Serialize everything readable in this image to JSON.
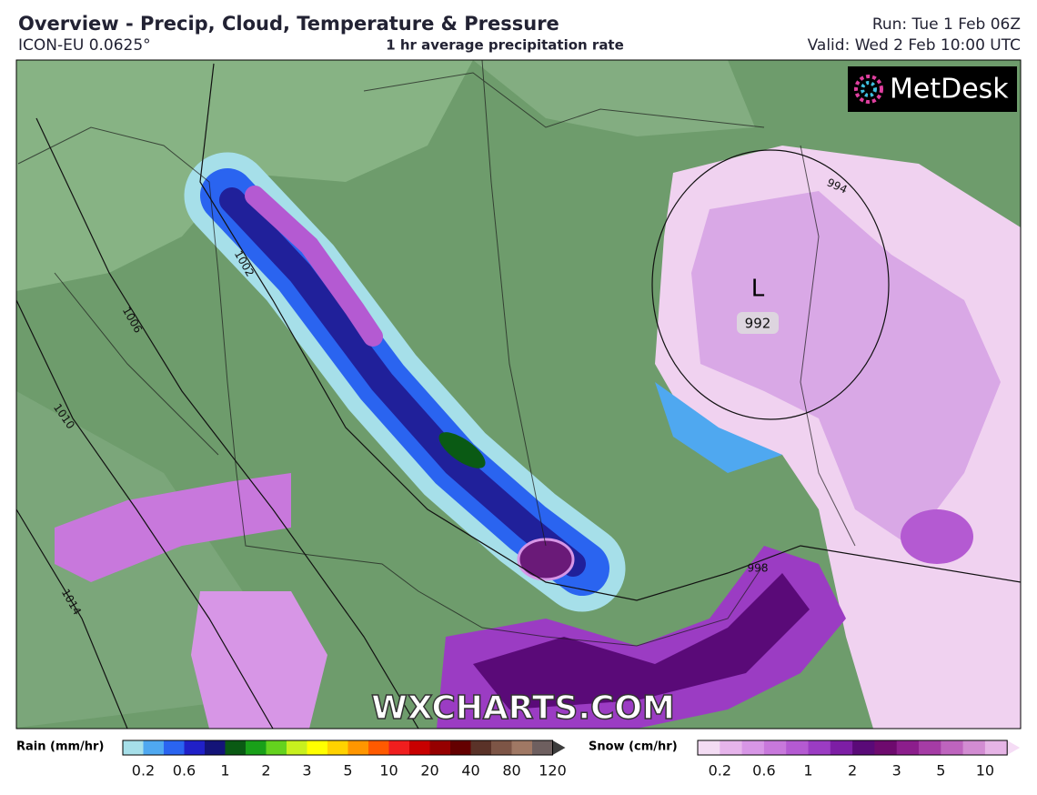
{
  "header": {
    "title": "Overview - Precip, Cloud, Temperature & Pressure",
    "model": "ICON-EU 0.0625°",
    "product": "1 hr average precipitation rate",
    "run": "Run: Tue 1 Feb 06Z",
    "valid": "Valid: Wed 2 Feb 10:00 UTC"
  },
  "map": {
    "logo": "MetDesk",
    "watermark": "WXCHARTS.COM",
    "low": {
      "symbol": "L",
      "pressure": "992"
    },
    "isobars": [
      "1002",
      "1006",
      "1010",
      "1014",
      "994",
      "998"
    ]
  },
  "legend": {
    "rain": {
      "label": "Rain (mm/hr)",
      "ticks": [
        0.2,
        0.6,
        1,
        2,
        3,
        5,
        10,
        20,
        40,
        80,
        120
      ],
      "colors": [
        "#a6dfe9",
        "#4fa8f0",
        "#2a64f0",
        "#2020c8",
        "#141478",
        "#0a5a14",
        "#19a019",
        "#64d21e",
        "#c8f01e",
        "#ffff00",
        "#ffd200",
        "#ff9600",
        "#ff5a00",
        "#f01e1e",
        "#c80000",
        "#960000",
        "#640000",
        "#5a3228",
        "#7d5546",
        "#a07864",
        "#6e5f5f",
        "#3c3c3c"
      ]
    },
    "snow": {
      "label": "Snow (cm/hr)",
      "ticks": [
        0.2,
        0.6,
        1,
        2,
        3,
        5,
        10
      ],
      "colors": [
        "#f3dcf3",
        "#e6b4eb",
        "#d796e6",
        "#c878dc",
        "#b45ad2",
        "#9b3cc3",
        "#7d1ea5",
        "#5a0a78",
        "#6e0a6e",
        "#8c1e8c",
        "#a53ca5",
        "#be64be",
        "#d28cd2",
        "#e6b4e6",
        "#f5dcf5"
      ]
    }
  }
}
